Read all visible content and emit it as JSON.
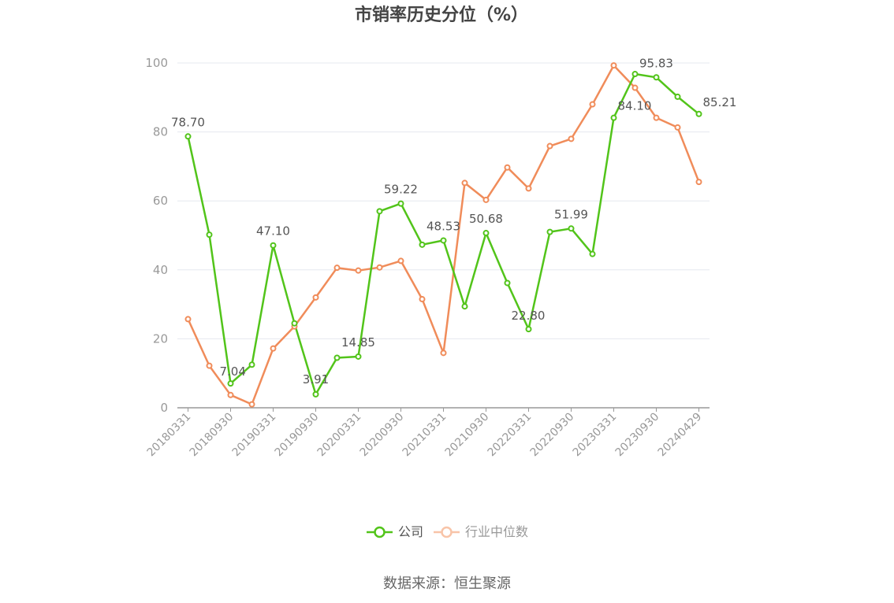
{
  "chart_data": {
    "type": "line",
    "title": "市销率历史分位（%）",
    "ylim": [
      0,
      100
    ],
    "yticks": [
      0,
      20,
      40,
      60,
      80,
      100
    ],
    "grid": true,
    "legend_position": "bottom",
    "x": [
      "20180331",
      "20180630",
      "20180930",
      "20181231",
      "20190331",
      "20190630",
      "20190930",
      "20191231",
      "20200331",
      "20200630",
      "20200930",
      "20201231",
      "20210331",
      "20210630",
      "20210930",
      "20211231",
      "20220331",
      "20220630",
      "20220930",
      "20221231",
      "20230331",
      "20230630",
      "20230930",
      "20231231",
      "20240429"
    ],
    "xtick_labels": [
      "20180331",
      "20180930",
      "20190331",
      "20190930",
      "20200331",
      "20200930",
      "20210331",
      "20210930",
      "20220331",
      "20220930",
      "20230331",
      "20230930",
      "20240429"
    ],
    "series": [
      {
        "name": "公司",
        "color": "#52c41a",
        "values": [
          78.7,
          50.2,
          7.04,
          12.5,
          47.1,
          24.5,
          3.91,
          14.5,
          14.85,
          57.0,
          59.22,
          47.3,
          48.53,
          29.4,
          50.68,
          36.2,
          22.8,
          51.0,
          51.99,
          44.6,
          84.1,
          96.8,
          95.83,
          90.2,
          85.21
        ],
        "labels": {
          "0": "78.70",
          "2": "7.04",
          "4": "47.10",
          "6": "3.91",
          "8": "14.85",
          "10": "59.22",
          "12": "48.53",
          "14": "50.68",
          "16": "22.80",
          "18": "51.99",
          "20": "84.10",
          "22": "95.83",
          "24": "85.21"
        }
      },
      {
        "name": "行业中位数",
        "color": "#f08c5a",
        "values": [
          25.7,
          12.2,
          3.7,
          1.0,
          17.2,
          23.6,
          32.0,
          40.6,
          39.8,
          40.7,
          42.6,
          31.5,
          15.9,
          65.2,
          60.3,
          69.7,
          63.6,
          75.9,
          78.0,
          88.0,
          99.3,
          92.8,
          84.1,
          81.3,
          65.5
        ]
      }
    ]
  },
  "source_text": "数据来源：恒生聚源"
}
